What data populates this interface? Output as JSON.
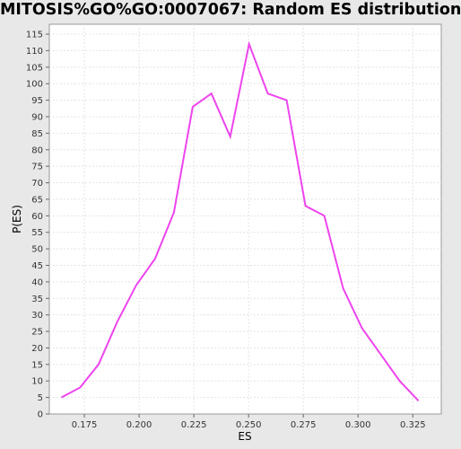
{
  "chart_data": {
    "type": "line",
    "title": "MITOSIS%GO%GO:0007067: Random ES distribution",
    "xlabel": "ES",
    "ylabel": "P(ES)",
    "xlim": [
      0.159,
      0.338
    ],
    "ylim": [
      0,
      118
    ],
    "x_ticks": [
      0.175,
      0.2,
      0.225,
      0.25,
      0.275,
      0.3,
      0.325
    ],
    "x_tick_labels": [
      "0.175",
      "0.200",
      "0.225",
      "0.250",
      "0.275",
      "0.300",
      "0.325"
    ],
    "y_ticks": [
      0,
      5,
      10,
      15,
      20,
      25,
      30,
      35,
      40,
      45,
      50,
      55,
      60,
      65,
      70,
      75,
      80,
      85,
      90,
      95,
      100,
      105,
      110,
      115
    ],
    "series": [
      {
        "name": "Random ES distribution",
        "color": "#ee44ee",
        "x": [
          0.1645,
          0.173,
          0.1815,
          0.1901,
          0.1987,
          0.2073,
          0.2159,
          0.2245,
          0.233,
          0.2416,
          0.2502,
          0.2588,
          0.2674,
          0.276,
          0.2846,
          0.2932,
          0.3018,
          0.3104,
          0.319,
          0.3276
        ],
        "y": [
          5,
          8,
          15,
          28,
          39,
          47,
          61,
          93,
          97,
          84,
          112,
          97,
          95,
          63,
          60,
          38,
          26,
          18,
          10,
          4
        ]
      }
    ],
    "grid": true,
    "legend": "none"
  }
}
